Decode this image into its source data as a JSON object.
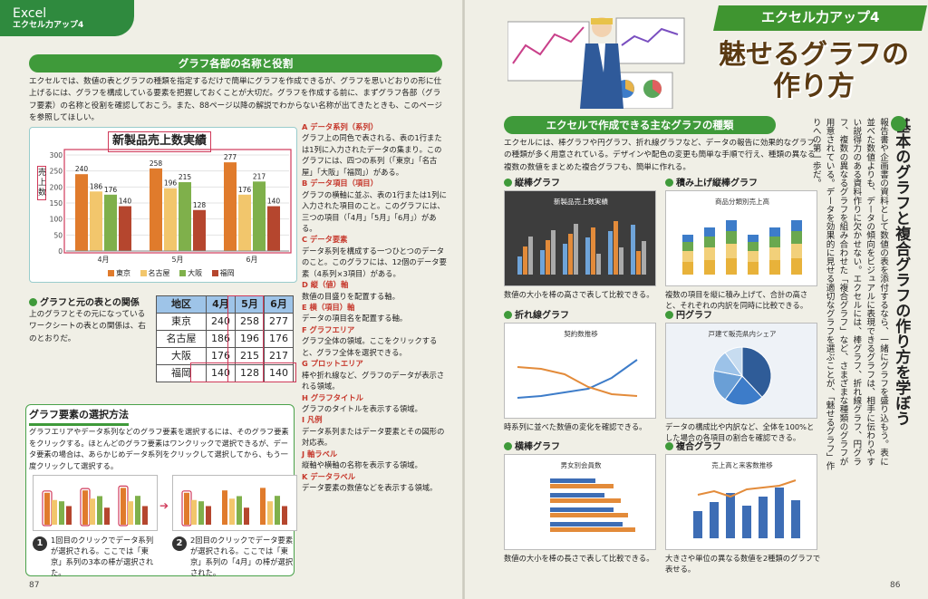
{
  "left_page": {
    "brand": {
      "app": "Excel",
      "series": "エクセル力アップ4"
    },
    "section1": {
      "title": "グラフ各部の名称と役割",
      "intro": "エクセルでは、数値の表とグラフの種類を指定するだけで簡単にグラフを作成できるが、グラフを思いどおりの形に仕上げるには、グラフを構成している要素を把握しておくことが大切だ。グラフを作成する前に、まずグラフ各部（グラフ要素）の名称と役割を確認しておこう。また、88ページ以降の解説でわからない名称が出てきたときも、このページを参照してほしい。"
    },
    "main_chart": {
      "title": "新製品売上数実績",
      "y_ticks": [
        "300",
        "250",
        "200",
        "150",
        "100",
        "50",
        "0"
      ],
      "y_axis_label": "売上数",
      "x_labels": [
        "4月",
        "5月",
        "6月"
      ],
      "legend": [
        "東京",
        "名古屋",
        "大阪",
        "福岡"
      ]
    },
    "chart_data": {
      "type": "bar",
      "title": "新製品売上数実績",
      "ylabel": "売上数",
      "categories": [
        "4月",
        "5月",
        "6月"
      ],
      "ylim": [
        0,
        300
      ],
      "series": [
        {
          "name": "東京",
          "values": [
            240,
            258,
            277
          ],
          "color": "#e07b2c"
        },
        {
          "name": "名古屋",
          "values": [
            186,
            196,
            176
          ],
          "color": "#f2c66c"
        },
        {
          "name": "大阪",
          "values": [
            176,
            215,
            217
          ],
          "color": "#7fb04b"
        },
        {
          "name": "福岡",
          "values": [
            140,
            128,
            140
          ],
          "color": "#b5462e"
        }
      ],
      "legend_position": "bottom",
      "grid": true
    },
    "definitions": [
      {
        "key": "A",
        "head": "データ系列（系列）",
        "body": "グラフ上の同色で表される、表の1行または1列に入力されたデータの集まり。このグラフには、四つの系列（「東京」「名古屋」「大阪」「福岡」）がある。"
      },
      {
        "key": "B",
        "head": "データ項目（項目）",
        "body": "グラフの横軸に並ぶ、表の1行または1列に入力された項目のこと。このグラフには、三つの項目（「4月」「5月」「6月」）がある。"
      },
      {
        "key": "C",
        "head": "データ要素",
        "body": "データ系列を構成する一つひとつのデータのこと。このグラフには、12個のデータ要素（4系列×3項目）がある。"
      },
      {
        "key": "D",
        "head": "縦（値）軸",
        "body": "数値の目盛りを配置する軸。"
      },
      {
        "key": "E",
        "head": "横（項目）軸",
        "body": "データの項目名を配置する軸。"
      },
      {
        "key": "F",
        "head": "グラフエリア",
        "body": "グラフ全体の領域。ここをクリックすると、グラフ全体を選択できる。"
      },
      {
        "key": "G",
        "head": "プロットエリア",
        "body": "棒や折れ線など、グラフのデータが表示される領域。"
      },
      {
        "key": "H",
        "head": "グラフタイトル",
        "body": "グラフのタイトルを表示する領域。"
      },
      {
        "key": "I",
        "head": "凡例",
        "body": "データ系列またはデータ要素とその図形の対応表。"
      },
      {
        "key": "J",
        "head": "軸ラベル",
        "body": "縦軸や横軸の名称を表示する領域。"
      },
      {
        "key": "K",
        "head": "データラベル",
        "body": "データ要素の数値などを表示する領域。"
      }
    ],
    "relation": {
      "title": "グラフと元の表との関係",
      "body": "上のグラフとその元になっているワークシートの表との関係は、右のとおりだ。"
    },
    "source_table": {
      "header": [
        "地区",
        "4月",
        "5月",
        "6月"
      ],
      "rows": [
        {
          "label": "東京",
          "vals": [
            "240",
            "258",
            "277"
          ]
        },
        {
          "label": "名古屋",
          "vals": [
            "186",
            "196",
            "176"
          ]
        },
        {
          "label": "大阪",
          "vals": [
            "176",
            "215",
            "217"
          ]
        },
        {
          "label": "福岡",
          "vals": [
            "140",
            "128",
            "140"
          ]
        }
      ]
    },
    "section2": {
      "title": "グラフ要素の選択方法",
      "body": "グラフエリアやデータ系列などのグラフ要素を選択するには、そのグラフ要素をクリックする。ほとんどのグラフ要素はワンクリックで選択できるが、データ要素の場合は、あらかじめデータ系列をクリックして選択してから、もう一度クリックして選択する。",
      "step1": "1回目のクリックでデータ系列が選択される。ここでは「東京」系列の3本の棒が選択された。",
      "step2": "2回目のクリックでデータ要素が選択される。ここでは「東京」系列の「4月」の棒が選択された。"
    },
    "page_number": "87"
  },
  "right_page": {
    "ribbon": "エクセル力アップ4",
    "title_line1": "魅せるグラフの",
    "title_line2": "作り方",
    "section": {
      "title": "エクセルで作成できる主なグラフの種類",
      "intro": "エクセルには、棒グラフや円グラフ、折れ線グラフなど、データの報告に効果的なグラフの種類が多く用意されている。デザインや配色の変更も簡単な手順で行え、種類の異なる複数の数値をまとめた複合グラフも、簡単に作れる。"
    },
    "chart_types": [
      {
        "name": "縦棒グラフ",
        "inner_title": "新製品売上数実績",
        "caption": "数値の大小を棒の高さで表して比較できる。"
      },
      {
        "name": "積み上げ縦棒グラフ",
        "inner_title": "商品分類別売上高",
        "caption": "複数の項目を縦に積み上げて、合計の高さと、それぞれの内訳を同時に比較できる。"
      },
      {
        "name": "折れ線グラフ",
        "inner_title": "契約数推移",
        "caption": "時系列に並べた数値の変化を確認できる。"
      },
      {
        "name": "円グラフ",
        "inner_title": "戸建て販売県内シェア",
        "caption": "データの構成比や内訳など、全体を100%とした場合の各項目の割合を確認できる。"
      },
      {
        "name": "横棒グラフ",
        "inner_title": "男女別会員数",
        "caption": "数値の大小を棒の長さで表して比較できる。"
      },
      {
        "name": "複合グラフ",
        "inner_title": "売上高と来客数推移",
        "caption": "大きさや単位の異なる数値を2種類のグラフで表せる。"
      }
    ],
    "vertical_title": "基本のグラフと複合グラフの作り方を学ぼう",
    "vertical_body": "報告書や企画書の資料として数値の表を添付するなら、一緒にグラフを盛り込もう。表に並べた数値よりも、データの傾向をビジュアルに表現できるグラフは、相手に伝わりやすい説得力のある資料作りに欠かせない。エクセルには、棒グラフ、折れ線グラフ、円グラフ、複数の異なるグラフを組み合わせた「複合グラフ」など、さまざまな種類のグラフが用意されている。データを効果的に見せる適切なグラフを選ぶことが、「魅せるグラフ」作りへの第一歩だ。",
    "page_number": "86"
  }
}
